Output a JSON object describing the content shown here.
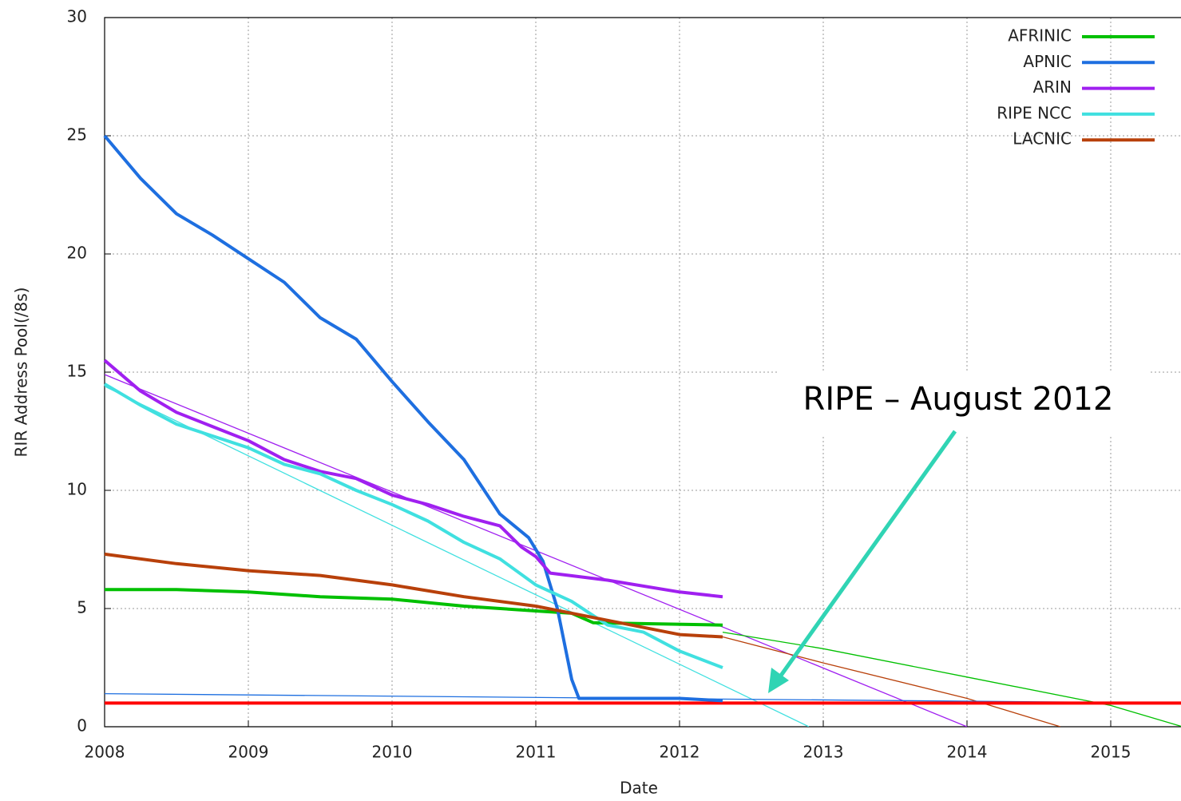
{
  "chart_data": {
    "type": "line",
    "xlabel": "Date",
    "ylabel": "RIR Address Pool(/8s)",
    "xlim": [
      2008,
      2015.5
    ],
    "ylim": [
      0,
      30
    ],
    "xticks": [
      2008,
      2009,
      2010,
      2011,
      2012,
      2013,
      2014,
      2015
    ],
    "yticks": [
      0,
      5,
      10,
      15,
      20,
      25,
      30
    ],
    "grid": true,
    "legend": "upper right",
    "series": [
      {
        "name": "AFRINIC",
        "color": "#00c000",
        "x": [
          2008,
          2008.5,
          2009,
          2009.5,
          2010,
          2010.5,
          2011,
          2011.25,
          2011.4,
          2012.3
        ],
        "values": [
          5.8,
          5.8,
          5.7,
          5.5,
          5.4,
          5.1,
          4.9,
          4.8,
          4.4,
          4.3
        ]
      },
      {
        "name": "APNIC",
        "color": "#1e6fe0",
        "x": [
          2008,
          2008.25,
          2008.5,
          2008.75,
          2009,
          2009.25,
          2009.5,
          2009.75,
          2010,
          2010.25,
          2010.5,
          2010.75,
          2010.95,
          2011.05,
          2011.15,
          2011.25,
          2011.3,
          2012,
          2012.3
        ],
        "values": [
          25,
          23.2,
          21.7,
          20.8,
          19.8,
          18.8,
          17.3,
          16.4,
          14.6,
          12.9,
          11.3,
          9,
          8,
          7,
          5,
          2,
          1.2,
          1.2,
          1.1
        ]
      },
      {
        "name": "ARIN",
        "color": "#a020f0",
        "x": [
          2008,
          2008.25,
          2008.5,
          2008.75,
          2009,
          2009.25,
          2009.5,
          2009.75,
          2010,
          2010.25,
          2010.5,
          2010.75,
          2010.9,
          2011,
          2011.1,
          2011.5,
          2012,
          2012.3
        ],
        "values": [
          15.5,
          14.2,
          13.3,
          12.7,
          12.1,
          11.3,
          10.8,
          10.5,
          9.8,
          9.4,
          8.9,
          8.5,
          7.6,
          7.2,
          6.5,
          6.2,
          5.7,
          5.5
        ]
      },
      {
        "name": "RIPE NCC",
        "color": "#40e0e0",
        "x": [
          2008,
          2008.25,
          2008.5,
          2008.75,
          2009,
          2009.25,
          2009.5,
          2009.75,
          2010,
          2010.25,
          2010.5,
          2010.75,
          2011,
          2011.25,
          2011.5,
          2011.75,
          2012,
          2012.3
        ],
        "values": [
          14.5,
          13.6,
          12.8,
          12.3,
          11.8,
          11.1,
          10.7,
          10,
          9.4,
          8.7,
          7.8,
          7.1,
          6,
          5.3,
          4.3,
          4,
          3.2,
          2.5
        ]
      },
      {
        "name": "LACNIC",
        "color": "#b8400a",
        "x": [
          2008,
          2008.5,
          2009,
          2009.5,
          2010,
          2010.5,
          2011,
          2011.5,
          2012,
          2012.3
        ],
        "values": [
          7.3,
          6.9,
          6.6,
          6.4,
          6,
          5.5,
          5.1,
          4.5,
          3.9,
          3.8
        ]
      }
    ],
    "trend_lines": [
      {
        "color": "#a020f0",
        "x": [
          2008,
          2014
        ],
        "values": [
          14.9,
          0
        ]
      },
      {
        "color": "#40e0e0",
        "x": [
          2008,
          2012.9
        ],
        "values": [
          14.4,
          0
        ]
      },
      {
        "color": "#00c000",
        "x": [
          2012.3,
          2013,
          2014,
          2015,
          2015.5
        ],
        "values": [
          4,
          3.3,
          2.1,
          0.9,
          0
        ]
      },
      {
        "color": "#b8400a",
        "x": [
          2012.3,
          2013,
          2014,
          2014.65
        ],
        "values": [
          3.8,
          2.7,
          1.2,
          0
        ]
      },
      {
        "color": "#1e6fe0",
        "x": [
          2008,
          2015.5
        ],
        "values": [
          1.4,
          1.0
        ]
      }
    ],
    "threshold": {
      "value": 1,
      "color": "#ff0000"
    },
    "annotation": "RIPE – August 2012"
  }
}
